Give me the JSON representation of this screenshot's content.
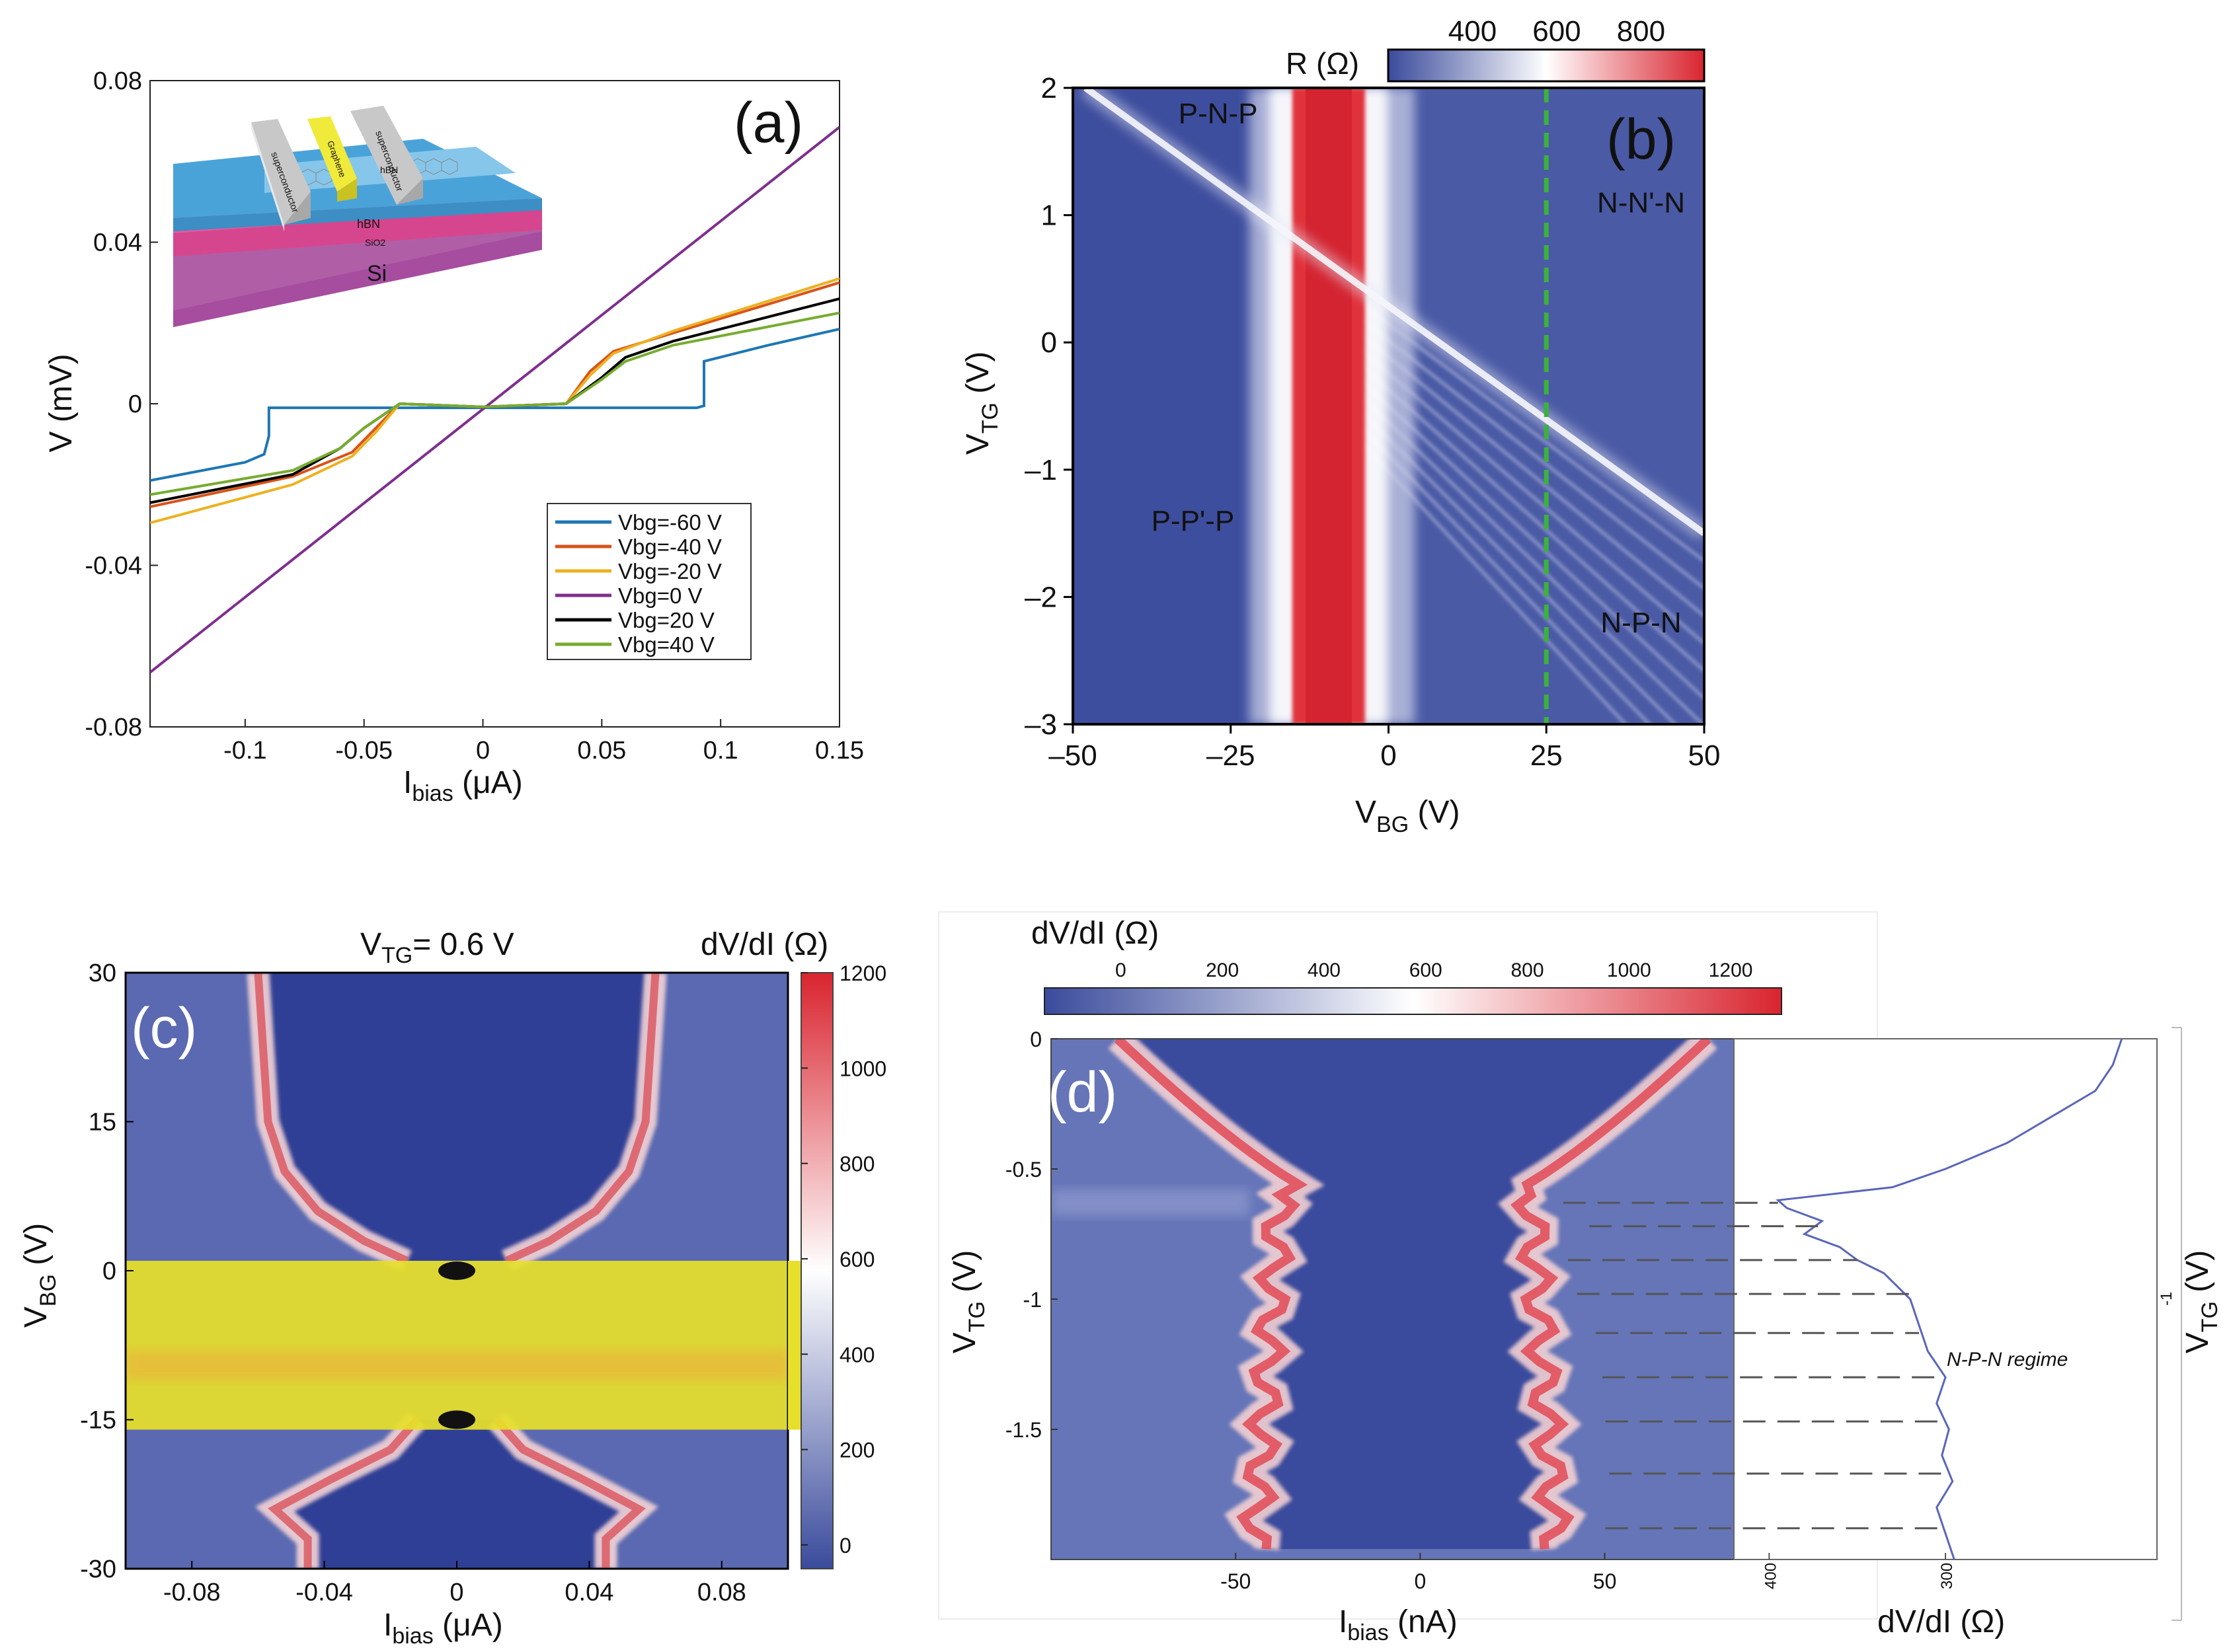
{
  "chart_data": [
    {
      "panel": "(a)",
      "type": "line",
      "xlabel": "I",
      "xlabel_sub": "bias",
      "xlabel_unit": " (μA)",
      "ylabel": "V (mV)",
      "xlim": [
        -0.14,
        0.15
      ],
      "ylim": [
        -0.08,
        0.08
      ],
      "xticks": [
        "-0.1",
        "-0.05",
        "0",
        "0.05",
        "0.1",
        "0.15"
      ],
      "xtick_values": [
        -0.1,
        -0.05,
        0,
        0.05,
        0.1,
        0.15
      ],
      "yticks": [
        "0.08",
        "0.04",
        "0",
        "-0.04",
        "-0.08"
      ],
      "ytick_values": [
        0.08,
        0.04,
        0,
        -0.04,
        -0.08
      ],
      "legend_position": "bottom-right",
      "inset_labels": [
        "superconductor",
        "Graphene",
        "superconductor",
        "hBN",
        "hBN",
        "SiO2",
        "Si"
      ],
      "series": [
        {
          "name": "Vbg=-60 V",
          "color": "#1f77b4",
          "x": [
            -0.14,
            -0.1,
            -0.092,
            -0.09,
            -0.09,
            0.0,
            0.09,
            0.093,
            0.093,
            0.12,
            0.15
          ],
          "y": [
            -0.019,
            -0.0145,
            -0.0125,
            -0.008,
            -0.001,
            -0.001,
            -0.001,
            -0.0005,
            0.0105,
            0.0145,
            0.0185
          ]
        },
        {
          "name": "Vbg=-40 V",
          "color": "#d95319",
          "x": [
            -0.14,
            -0.08,
            -0.055,
            -0.045,
            -0.035,
            0.0,
            0.035,
            0.045,
            0.055,
            0.08,
            0.15
          ],
          "y": [
            -0.0255,
            -0.018,
            -0.012,
            -0.006,
            0.0,
            -0.0008,
            0.0,
            0.008,
            0.013,
            0.0175,
            0.03
          ]
        },
        {
          "name": "Vbg=-20 V",
          "color": "#edb120",
          "x": [
            -0.14,
            -0.08,
            -0.055,
            -0.045,
            -0.035,
            0.0,
            0.035,
            0.045,
            0.055,
            0.08,
            0.15
          ],
          "y": [
            -0.0295,
            -0.02,
            -0.013,
            -0.007,
            0.0,
            -0.0008,
            0.0,
            0.007,
            0.0125,
            0.018,
            0.031
          ]
        },
        {
          "name": "Vbg=0 V",
          "color": "#7e2f8e",
          "x": [
            -0.14,
            0.15
          ],
          "y": [
            -0.0665,
            0.0685
          ]
        },
        {
          "name": "Vbg=20 V",
          "color": "#000000",
          "x": [
            -0.14,
            -0.08,
            -0.06,
            -0.05,
            -0.035,
            0.0,
            0.035,
            0.05,
            0.06,
            0.08,
            0.15
          ],
          "y": [
            -0.0245,
            -0.0175,
            -0.011,
            -0.006,
            0.0,
            -0.0008,
            0.0,
            0.0065,
            0.0115,
            0.0155,
            0.026
          ]
        },
        {
          "name": "Vbg=40 V",
          "color": "#77ac30",
          "x": [
            -0.14,
            -0.08,
            -0.06,
            -0.05,
            -0.035,
            0.0,
            0.035,
            0.05,
            0.06,
            0.08,
            0.15
          ],
          "y": [
            -0.0225,
            -0.0165,
            -0.011,
            -0.006,
            0.0,
            -0.0008,
            0.0,
            0.006,
            0.0105,
            0.0145,
            0.0225
          ]
        }
      ]
    },
    {
      "panel": "(b)",
      "type": "heatmap",
      "xlabel": "V",
      "xlabel_sub": "BG",
      "xlabel_unit": " (V)",
      "ylabel": "V",
      "ylabel_sub": "TG",
      "ylabel_unit": " (V)",
      "xlim": [
        -50,
        50
      ],
      "ylim": [
        -3,
        2
      ],
      "xticks": [
        "–50",
        "–25",
        "0",
        "25",
        "50"
      ],
      "xtick_values": [
        -50,
        -25,
        0,
        25,
        50
      ],
      "yticks": [
        "2",
        "1",
        "0",
        "–1",
        "–2",
        "–3"
      ],
      "ytick_values": [
        2,
        1,
        0,
        -1,
        -2,
        -3
      ],
      "colorbar": {
        "label": "R (Ω)",
        "ticks": [
          "400",
          "600",
          "800"
        ],
        "tick_values": [
          400,
          600,
          800
        ],
        "range": [
          200,
          950
        ]
      },
      "regions": [
        {
          "label": "P-N-P",
          "x": -27,
          "y": 1.8
        },
        {
          "label": "N-N'-N",
          "x": 40,
          "y": 1.1
        },
        {
          "label": "P-P'-P",
          "x": -31,
          "y": -1.4
        },
        {
          "label": "N-P-N",
          "x": 40,
          "y": -2.2
        }
      ],
      "dirac_line_backgate_V": -9,
      "crossing_line": {
        "from": [
          -48,
          2.0
        ],
        "to": [
          50,
          -1.5
        ]
      },
      "dashed_line_VBG": 25
    },
    {
      "panel": "(c)",
      "type": "heatmap",
      "title_pre": "V",
      "title_sub": "TG",
      "title_post": "= 0.6 V",
      "xlabel": "I",
      "xlabel_sub": "bias",
      "xlabel_unit": " (μA)",
      "ylabel": "V",
      "ylabel_sub": "BG",
      "ylabel_unit": " (V)",
      "xlim": [
        -0.1,
        0.1
      ],
      "ylim": [
        -30,
        30
      ],
      "xticks": [
        "-0.08",
        "-0.04",
        "0",
        "0.04",
        "0.08"
      ],
      "xtick_values": [
        -0.08,
        -0.04,
        0,
        0.04,
        0.08
      ],
      "yticks": [
        "30",
        "15",
        "0",
        "-15",
        "-30"
      ],
      "ytick_values": [
        30,
        15,
        0,
        -15,
        -30
      ],
      "colorbar": {
        "label": "dV/dI (Ω)",
        "ticks": [
          "1200",
          "1000",
          "800",
          "600",
          "400",
          "200",
          "0"
        ],
        "tick_values": [
          1200,
          1000,
          800,
          600,
          400,
          200,
          0
        ],
        "range": [
          -50,
          1200
        ]
      },
      "highlight_band_VBG": [
        -16,
        1
      ]
    },
    {
      "panel": "(d)",
      "type": "heatmap",
      "xlabel": "I",
      "xlabel_sub": "bias",
      "xlabel_unit": " (nA)",
      "ylabel": "V",
      "ylabel_sub": "TG",
      "ylabel_unit": " (V)",
      "xlim": [
        -100,
        85
      ],
      "ylim": [
        -2.0,
        0
      ],
      "xticks": [
        "-50",
        "0",
        "50"
      ],
      "xtick_values": [
        -50,
        0,
        50
      ],
      "yticks": [
        "0",
        "-0.5",
        "-1",
        "-1.5"
      ],
      "ytick_values": [
        0,
        -0.5,
        -1,
        -1.5
      ],
      "colorbar": {
        "label": "dV/dI (Ω)",
        "ticks": [
          "0",
          "200",
          "400",
          "600",
          "800",
          "1000",
          "1200"
        ],
        "tick_values": [
          0,
          200,
          400,
          600,
          800,
          1000,
          1200
        ],
        "range": [
          -150,
          1300
        ]
      },
      "dashed_levels_VTG": [
        -0.63,
        -0.72,
        -0.85,
        -0.98,
        -1.13,
        -1.3,
        -1.47,
        -1.67,
        -1.88
      ],
      "side_plot": {
        "xlabel": "dV/dI (Ω)",
        "right_ylabel": "V",
        "right_ylabel_sub": "TG",
        "right_ylabel_unit": " (V)",
        "xticks": [
          "400",
          "300"
        ],
        "xtick_values": [
          400,
          300
        ],
        "xlim": [
          420,
          180
        ],
        "right_ytick": "-1",
        "annotation": "N-P-N regime",
        "line_color": "#5a66b8",
        "vtg": [
          0.0,
          -0.1,
          -0.2,
          -0.3,
          -0.4,
          -0.5,
          -0.57,
          -0.62,
          -0.65,
          -0.7,
          -0.75,
          -0.8,
          -0.85,
          -0.9,
          -1.0,
          -1.1,
          -1.2,
          -1.3,
          -1.4,
          -1.5,
          -1.6,
          -1.7,
          -1.8,
          -1.9,
          -2.0
        ],
        "dvdi": [
          200,
          205,
          215,
          240,
          265,
          300,
          330,
          395,
          390,
          370,
          380,
          360,
          350,
          335,
          320,
          315,
          310,
          300,
          305,
          298,
          302,
          296,
          305,
          300,
          295
        ]
      }
    }
  ]
}
